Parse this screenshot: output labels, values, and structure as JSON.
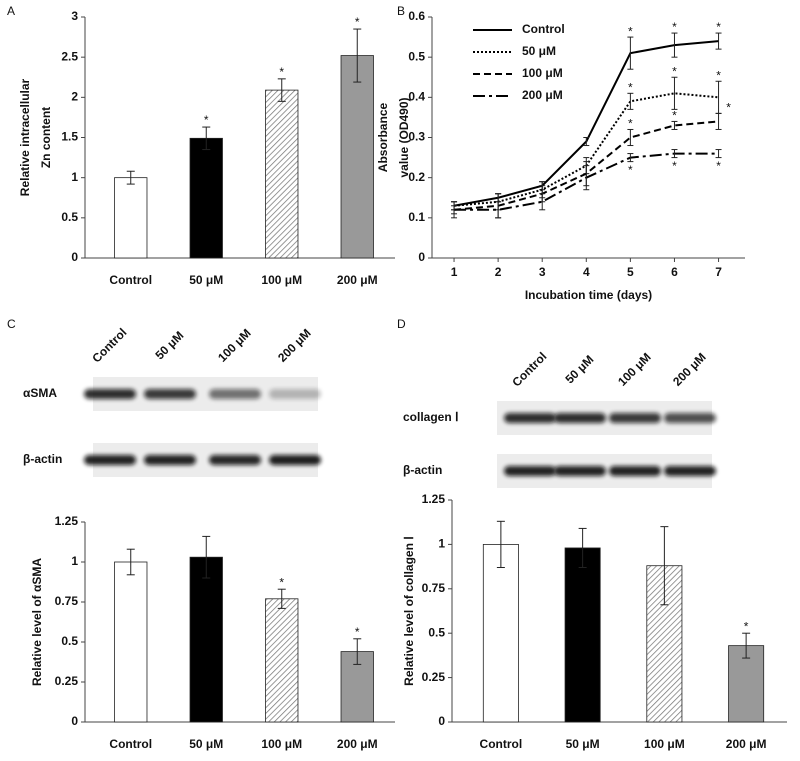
{
  "chart_data": [
    {
      "type": "bar",
      "label": "A",
      "ylabel": [
        "Relative intracellular",
        "Zn content"
      ],
      "categories": [
        "Control",
        "50 μM",
        "100 μM",
        "200 μM"
      ],
      "values": [
        1.0,
        1.49,
        2.09,
        2.52
      ],
      "errors": [
        0.08,
        0.14,
        0.14,
        0.33
      ],
      "markers": [
        null,
        "*",
        "*",
        "*"
      ],
      "colors": [
        "#ffffff",
        "#000000",
        "#ffffff",
        "#999999"
      ],
      "hatch": [
        false,
        false,
        true,
        false
      ],
      "ylim": [
        0,
        3
      ],
      "yticks": [
        0,
        0.5,
        1,
        1.5,
        2,
        2.5,
        3
      ]
    },
    {
      "type": "line",
      "label": "B",
      "xlabel": "Incubation time (days)",
      "ylabel": [
        "Absorbance",
        "value (OD490)"
      ],
      "x": [
        1,
        2,
        3,
        4,
        5,
        6,
        7
      ],
      "xlim": [
        0.5,
        7.6
      ],
      "xticks": [
        1,
        2,
        3,
        4,
        5,
        6,
        7
      ],
      "ylim": [
        0,
        0.6
      ],
      "yticks": [
        0,
        0.1,
        0.2,
        0.3,
        0.4,
        0.5,
        0.6
      ],
      "series": [
        {
          "name": "Control",
          "color": "#000000",
          "dash": "solid",
          "values": [
            0.13,
            0.15,
            0.18,
            0.29,
            0.51,
            0.53,
            0.54
          ],
          "errors": [
            0.01,
            0.01,
            0.01,
            0.01,
            0.04,
            0.03,
            0.02
          ],
          "markers": [
            null,
            null,
            null,
            null,
            "*",
            "*",
            "*"
          ]
        },
        {
          "name": "50 μM",
          "color": "#000000",
          "dash": "dotted",
          "values": [
            0.13,
            0.14,
            0.17,
            0.23,
            0.39,
            0.41,
            0.4
          ],
          "errors": [
            0.01,
            0.02,
            0.02,
            0.02,
            0.02,
            0.04,
            0.04
          ],
          "markers": [
            null,
            null,
            null,
            null,
            "*",
            "*",
            "*"
          ]
        },
        {
          "name": "100 μM",
          "color": "#000000",
          "dash": "dashed",
          "values": [
            0.12,
            0.13,
            0.16,
            0.21,
            0.3,
            0.33,
            0.34
          ],
          "errors": [
            0.02,
            0.03,
            0.02,
            0.03,
            0.02,
            0.01,
            0.02
          ],
          "markers": [
            null,
            null,
            null,
            null,
            "*",
            "*",
            "*"
          ]
        },
        {
          "name": "200 μM",
          "color": "#000000",
          "dash": "dashdot",
          "values": [
            0.12,
            0.12,
            0.14,
            0.2,
            0.25,
            0.26,
            0.26
          ],
          "errors": [
            0.01,
            0.02,
            0.02,
            0.03,
            0.01,
            0.01,
            0.01
          ],
          "markers": [
            null,
            null,
            null,
            null,
            "*",
            "*",
            "*"
          ]
        }
      ]
    },
    {
      "type": "bar",
      "label": "C",
      "blot_lanes": [
        "Control",
        "50 μM",
        "100 μM",
        "200 μM"
      ],
      "blot_rows": [
        "αSMA",
        "β-actin"
      ],
      "ylabel": [
        "Relative level of αSMA"
      ],
      "categories": [
        "Control",
        "50 μM",
        "100 μM",
        "200 μM"
      ],
      "values": [
        1.0,
        1.03,
        0.77,
        0.44
      ],
      "errors": [
        0.08,
        0.13,
        0.06,
        0.08
      ],
      "markers": [
        null,
        null,
        "*",
        "*"
      ],
      "colors": [
        "#ffffff",
        "#000000",
        "#ffffff",
        "#999999"
      ],
      "hatch": [
        false,
        false,
        true,
        false
      ],
      "ylim": [
        0,
        1.25
      ],
      "yticks": [
        0,
        0.25,
        0.5,
        0.75,
        1,
        1.25
      ]
    },
    {
      "type": "bar",
      "label": "D",
      "blot_lanes": [
        "Control",
        "50 μM",
        "100 μM",
        "200 μM"
      ],
      "blot_rows": [
        "collagen Ⅰ",
        "β-actin"
      ],
      "ylabel": [
        "Relative level of collagen Ⅰ"
      ],
      "categories": [
        "Control",
        "50 μM",
        "100 μM",
        "200 μM"
      ],
      "values": [
        1.0,
        0.98,
        0.88,
        0.43
      ],
      "errors": [
        0.13,
        0.11,
        0.22,
        0.07
      ],
      "markers": [
        null,
        null,
        null,
        "*"
      ],
      "colors": [
        "#ffffff",
        "#000000",
        "#ffffff",
        "#999999"
      ],
      "hatch": [
        false,
        false,
        true,
        false
      ],
      "ylim": [
        0,
        1.25
      ],
      "yticks": [
        0,
        0.25,
        0.5,
        0.75,
        1,
        1.25
      ]
    }
  ]
}
